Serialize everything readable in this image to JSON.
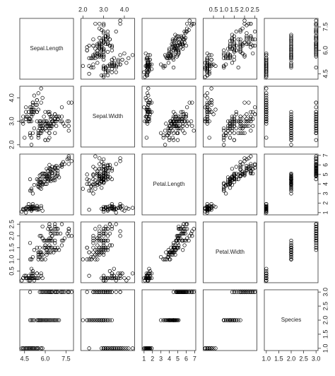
{
  "chart_data": {
    "type": "scatter_matrix",
    "variables": [
      {
        "name": "Sepal.Length",
        "lim": [
          4.156,
          8.044
        ],
        "ticks": [
          4.5,
          {
            "value": 6,
            "label": "6.0"
          },
          7.5
        ],
        "values": [
          5.1,
          4.9,
          4.7,
          4.6,
          5.0,
          5.4,
          4.6,
          5.0,
          4.4,
          4.9,
          5.4,
          4.8,
          4.8,
          4.3,
          5.8,
          5.7,
          5.4,
          5.1,
          5.7,
          5.1,
          5.4,
          5.1,
          4.6,
          5.1,
          4.8,
          5.0,
          5.0,
          5.2,
          5.2,
          4.7,
          4.8,
          5.4,
          5.2,
          5.5,
          4.9,
          5.0,
          5.5,
          4.9,
          4.4,
          5.1,
          5.0,
          4.5,
          4.4,
          5.0,
          5.1,
          4.8,
          5.1,
          4.6,
          5.3,
          5.0,
          7.0,
          6.4,
          6.9,
          5.5,
          6.5,
          5.7,
          6.3,
          4.9,
          6.6,
          5.2,
          5.0,
          5.9,
          6.0,
          6.1,
          5.6,
          6.7,
          5.6,
          5.8,
          6.2,
          5.6,
          5.9,
          6.1,
          6.3,
          6.1,
          6.4,
          6.6,
          6.8,
          6.7,
          6.0,
          5.7,
          5.5,
          5.5,
          5.8,
          6.0,
          5.4,
          6.0,
          6.7,
          6.3,
          5.6,
          5.5,
          5.5,
          6.1,
          5.8,
          5.0,
          5.6,
          5.7,
          5.7,
          6.2,
          5.1,
          5.7,
          6.3,
          5.8,
          7.1,
          6.3,
          6.5,
          7.6,
          4.9,
          7.3,
          6.7,
          7.2,
          6.5,
          6.4,
          6.8,
          5.7,
          5.8,
          6.4,
          6.5,
          7.7,
          7.7,
          6.0,
          6.9,
          5.6,
          7.7,
          6.3,
          6.7,
          7.2,
          6.2,
          6.1,
          6.4,
          7.2,
          7.4,
          7.9,
          6.4,
          6.3,
          6.1,
          7.7,
          6.3,
          6.4,
          6.0,
          6.9,
          6.7,
          6.9,
          5.8,
          6.8,
          6.7,
          6.7,
          6.3,
          6.5,
          6.2,
          5.9
        ]
      },
      {
        "name": "Sepal.Width",
        "lim": [
          1.904,
          4.496
        ],
        "ticks": [
          {
            "value": 2,
            "label": "2.0"
          },
          {
            "value": 3,
            "label": "3.0"
          },
          {
            "value": 4,
            "label": "4.0"
          }
        ],
        "values": [
          3.5,
          3.0,
          3.2,
          3.1,
          3.6,
          3.9,
          3.4,
          3.4,
          2.9,
          3.1,
          3.7,
          3.4,
          3.0,
          3.0,
          4.0,
          4.4,
          3.9,
          3.5,
          3.8,
          3.8,
          3.4,
          3.7,
          3.6,
          3.3,
          3.4,
          3.0,
          3.4,
          3.5,
          3.4,
          3.2,
          3.1,
          3.4,
          4.1,
          4.2,
          3.1,
          3.2,
          3.5,
          3.6,
          3.0,
          3.4,
          3.5,
          2.3,
          3.2,
          3.5,
          3.8,
          3.0,
          3.8,
          3.2,
          3.7,
          3.3,
          3.2,
          3.2,
          3.1,
          2.3,
          2.8,
          2.8,
          3.3,
          2.4,
          2.9,
          2.7,
          2.0,
          3.0,
          2.2,
          2.9,
          2.9,
          3.1,
          3.0,
          2.7,
          2.2,
          2.5,
          3.2,
          2.8,
          2.5,
          2.8,
          2.9,
          3.0,
          2.8,
          3.0,
          2.9,
          2.6,
          2.4,
          2.4,
          2.7,
          2.7,
          3.0,
          3.4,
          3.1,
          2.3,
          3.0,
          2.5,
          2.6,
          3.0,
          2.6,
          2.3,
          2.7,
          3.0,
          2.9,
          2.9,
          2.5,
          2.8,
          3.3,
          2.7,
          3.0,
          2.9,
          3.0,
          3.0,
          2.5,
          2.9,
          2.5,
          3.6,
          3.2,
          2.7,
          3.0,
          2.5,
          2.8,
          3.2,
          3.0,
          3.8,
          2.6,
          2.2,
          3.2,
          2.8,
          2.8,
          2.7,
          3.3,
          3.2,
          2.8,
          3.0,
          2.8,
          3.0,
          2.8,
          3.8,
          2.8,
          2.8,
          2.6,
          3.0,
          3.4,
          3.1,
          3.0,
          3.1,
          3.1,
          3.1,
          2.7,
          3.2,
          3.3,
          3.0,
          2.5,
          3.0,
          3.4,
          3.0
        ]
      },
      {
        "name": "Petal.Length",
        "lim": [
          0.764,
          7.136
        ],
        "ticks": [
          1,
          2,
          3,
          4,
          5,
          6,
          7
        ],
        "values": [
          1.4,
          1.4,
          1.3,
          1.5,
          1.4,
          1.7,
          1.4,
          1.5,
          1.4,
          1.5,
          1.5,
          1.6,
          1.4,
          1.1,
          1.2,
          1.5,
          1.3,
          1.4,
          1.7,
          1.5,
          1.7,
          1.5,
          1.0,
          1.7,
          1.9,
          1.6,
          1.6,
          1.5,
          1.4,
          1.6,
          1.6,
          1.5,
          1.5,
          1.4,
          1.5,
          1.2,
          1.3,
          1.4,
          1.3,
          1.5,
          1.3,
          1.3,
          1.3,
          1.6,
          1.9,
          1.4,
          1.6,
          1.4,
          1.5,
          1.4,
          4.7,
          4.5,
          4.9,
          4.0,
          4.6,
          4.5,
          4.7,
          3.3,
          4.6,
          3.9,
          3.5,
          4.2,
          4.0,
          4.7,
          3.6,
          4.4,
          4.5,
          4.1,
          4.5,
          3.9,
          4.8,
          4.0,
          4.9,
          4.7,
          4.3,
          4.4,
          4.8,
          5.0,
          4.5,
          3.5,
          3.8,
          3.7,
          3.9,
          5.1,
          4.5,
          4.5,
          4.7,
          4.4,
          4.1,
          4.0,
          4.4,
          4.6,
          4.0,
          3.3,
          4.2,
          4.2,
          4.2,
          4.3,
          3.0,
          4.1,
          6.0,
          5.1,
          5.9,
          5.6,
          5.8,
          6.6,
          4.5,
          6.3,
          5.8,
          6.1,
          5.1,
          5.3,
          5.5,
          5.0,
          5.1,
          5.3,
          5.5,
          6.7,
          6.9,
          5.0,
          5.7,
          4.9,
          6.7,
          4.9,
          5.7,
          6.0,
          4.8,
          4.9,
          5.6,
          5.8,
          6.1,
          6.4,
          5.6,
          5.1,
          5.6,
          6.1,
          5.6,
          5.5,
          4.8,
          5.4,
          5.6,
          5.1,
          5.1,
          5.9,
          5.7,
          5.2,
          5.0,
          5.2,
          5.4,
          5.1
        ]
      },
      {
        "name": "Petal.Width",
        "lim": [
          0.004,
          2.596
        ],
        "ticks": [
          0.5,
          {
            "value": 1,
            "label": "1.0"
          },
          1.5,
          {
            "value": 2,
            "label": "2.0"
          },
          2.5
        ],
        "values": [
          0.2,
          0.2,
          0.2,
          0.2,
          0.2,
          0.4,
          0.3,
          0.2,
          0.2,
          0.1,
          0.2,
          0.2,
          0.1,
          0.1,
          0.2,
          0.4,
          0.4,
          0.3,
          0.3,
          0.3,
          0.2,
          0.4,
          0.2,
          0.5,
          0.2,
          0.2,
          0.4,
          0.2,
          0.2,
          0.2,
          0.2,
          0.4,
          0.1,
          0.2,
          0.2,
          0.2,
          0.2,
          0.1,
          0.2,
          0.2,
          0.3,
          0.3,
          0.2,
          0.6,
          0.4,
          0.3,
          0.2,
          0.2,
          0.2,
          0.2,
          1.4,
          1.5,
          1.5,
          1.3,
          1.5,
          1.3,
          1.6,
          1.0,
          1.3,
          1.4,
          1.0,
          1.5,
          1.0,
          1.4,
          1.3,
          1.4,
          1.5,
          1.0,
          1.5,
          1.1,
          1.8,
          1.3,
          1.5,
          1.2,
          1.3,
          1.4,
          1.4,
          1.7,
          1.5,
          1.0,
          1.1,
          1.0,
          1.2,
          1.6,
          1.5,
          1.6,
          1.5,
          1.3,
          1.3,
          1.3,
          1.2,
          1.4,
          1.2,
          1.0,
          1.3,
          1.2,
          1.3,
          1.3,
          1.1,
          1.3,
          2.5,
          1.9,
          2.1,
          1.8,
          2.2,
          2.1,
          1.7,
          1.8,
          1.8,
          2.5,
          2.0,
          1.9,
          2.1,
          2.0,
          2.4,
          2.3,
          1.8,
          2.2,
          2.3,
          1.5,
          2.3,
          2.0,
          2.0,
          1.8,
          2.1,
          1.8,
          1.8,
          1.8,
          2.1,
          1.6,
          1.9,
          2.0,
          2.2,
          1.5,
          1.4,
          2.3,
          2.4,
          1.8,
          1.8,
          2.1,
          2.4,
          2.3,
          1.9,
          2.3,
          2.5,
          2.3,
          1.9,
          2.0,
          2.3,
          1.8
        ]
      },
      {
        "name": "Species",
        "lim": [
          0.92,
          3.08
        ],
        "ticks": [
          {
            "value": 1,
            "label": "1.0"
          },
          1.5,
          {
            "value": 2,
            "label": "2.0"
          },
          2.5,
          {
            "value": 3,
            "label": "3.0"
          }
        ],
        "values": [
          1,
          1,
          1,
          1,
          1,
          1,
          1,
          1,
          1,
          1,
          1,
          1,
          1,
          1,
          1,
          1,
          1,
          1,
          1,
          1,
          1,
          1,
          1,
          1,
          1,
          1,
          1,
          1,
          1,
          1,
          1,
          1,
          1,
          1,
          1,
          1,
          1,
          1,
          1,
          1,
          1,
          1,
          1,
          1,
          1,
          1,
          1,
          1,
          1,
          1,
          2,
          2,
          2,
          2,
          2,
          2,
          2,
          2,
          2,
          2,
          2,
          2,
          2,
          2,
          2,
          2,
          2,
          2,
          2,
          2,
          2,
          2,
          2,
          2,
          2,
          2,
          2,
          2,
          2,
          2,
          2,
          2,
          2,
          2,
          2,
          2,
          2,
          2,
          2,
          2,
          2,
          2,
          2,
          2,
          2,
          2,
          2,
          2,
          2,
          2,
          3,
          3,
          3,
          3,
          3,
          3,
          3,
          3,
          3,
          3,
          3,
          3,
          3,
          3,
          3,
          3,
          3,
          3,
          3,
          3,
          3,
          3,
          3,
          3,
          3,
          3,
          3,
          3,
          3,
          3,
          3,
          3,
          3,
          3,
          3,
          3,
          3,
          3,
          3,
          3,
          3,
          3,
          3,
          3,
          3,
          3,
          3,
          3,
          3,
          3
        ]
      }
    ]
  }
}
